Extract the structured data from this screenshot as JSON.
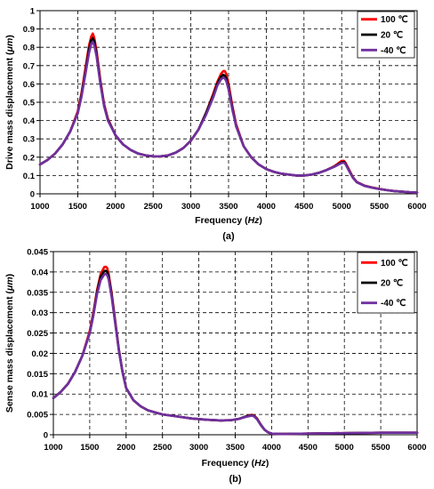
{
  "chart_data": [
    {
      "type": "line",
      "panel_label": "(a)",
      "xlabel_prefix": "Frequency (",
      "xlabel_unit": "Hz",
      "xlabel_suffix": ")",
      "ylabel_prefix": "Drive mass displacement (",
      "ylabel_unit": "μm",
      "ylabel_suffix": ")",
      "xlim": [
        1000,
        6000
      ],
      "ylim": [
        0,
        1
      ],
      "xticks": [
        1000,
        1500,
        2000,
        2500,
        3000,
        3500,
        4000,
        4500,
        5000,
        5500,
        6000
      ],
      "xtick_labels": [
        "1000",
        "1500",
        "2000",
        "2500",
        "3000",
        "3500",
        "4000",
        "4500",
        "5000",
        "5500",
        "6000"
      ],
      "yticks": [
        0,
        0.1,
        0.2,
        0.3,
        0.4,
        0.5,
        0.6,
        0.7,
        0.8,
        0.9,
        1
      ],
      "ytick_labels": [
        "0",
        "0.1",
        "0.2",
        "0.3",
        "0.4",
        "0.5",
        "0.6",
        "0.7",
        "0.8",
        "0.9",
        "1"
      ],
      "grid": "dashed",
      "legend_position": "top-right",
      "series": [
        {
          "name": "100 ℃",
          "color": "#ff0000",
          "x": [
            1000,
            1100,
            1200,
            1300,
            1400,
            1500,
            1550,
            1600,
            1650,
            1680,
            1700,
            1720,
            1750,
            1800,
            1850,
            1900,
            2000,
            2100,
            2200,
            2300,
            2400,
            2500,
            2600,
            2700,
            2800,
            2900,
            3000,
            3100,
            3200,
            3300,
            3350,
            3400,
            3430,
            3450,
            3470,
            3500,
            3550,
            3600,
            3700,
            3800,
            3900,
            4000,
            4100,
            4200,
            4300,
            4400,
            4500,
            4600,
            4700,
            4800,
            4900,
            4950,
            5000,
            5030,
            5050,
            5100,
            5150,
            5200,
            5300,
            5400,
            5500,
            5600,
            5700,
            5800,
            5900,
            6000
          ],
          "y": [
            0.16,
            0.185,
            0.22,
            0.27,
            0.34,
            0.45,
            0.55,
            0.68,
            0.81,
            0.86,
            0.875,
            0.85,
            0.78,
            0.62,
            0.49,
            0.41,
            0.32,
            0.27,
            0.24,
            0.22,
            0.21,
            0.205,
            0.205,
            0.21,
            0.225,
            0.25,
            0.29,
            0.35,
            0.44,
            0.55,
            0.61,
            0.655,
            0.67,
            0.67,
            0.655,
            0.6,
            0.48,
            0.38,
            0.26,
            0.2,
            0.16,
            0.135,
            0.12,
            0.11,
            0.105,
            0.1,
            0.1,
            0.105,
            0.115,
            0.13,
            0.15,
            0.165,
            0.18,
            0.18,
            0.17,
            0.13,
            0.09,
            0.065,
            0.045,
            0.035,
            0.027,
            0.02,
            0.015,
            0.012,
            0.009,
            0.007
          ]
        },
        {
          "name": "20 ℃",
          "color": "#000000",
          "x": [
            1000,
            1100,
            1200,
            1300,
            1400,
            1500,
            1550,
            1600,
            1650,
            1680,
            1700,
            1720,
            1750,
            1800,
            1850,
            1900,
            2000,
            2100,
            2200,
            2300,
            2400,
            2500,
            2600,
            2700,
            2800,
            2900,
            3000,
            3100,
            3200,
            3300,
            3350,
            3400,
            3430,
            3450,
            3470,
            3500,
            3550,
            3600,
            3700,
            3800,
            3900,
            4000,
            4100,
            4200,
            4300,
            4400,
            4500,
            4600,
            4700,
            4800,
            4900,
            4950,
            5000,
            5030,
            5050,
            5100,
            5150,
            5200,
            5300,
            5400,
            5500,
            5600,
            5700,
            5800,
            5900,
            6000
          ],
          "y": [
            0.16,
            0.185,
            0.22,
            0.27,
            0.34,
            0.44,
            0.54,
            0.66,
            0.79,
            0.84,
            0.85,
            0.83,
            0.76,
            0.61,
            0.48,
            0.405,
            0.32,
            0.27,
            0.24,
            0.22,
            0.21,
            0.205,
            0.205,
            0.21,
            0.225,
            0.25,
            0.29,
            0.35,
            0.44,
            0.54,
            0.6,
            0.64,
            0.65,
            0.645,
            0.63,
            0.58,
            0.47,
            0.37,
            0.26,
            0.2,
            0.16,
            0.135,
            0.12,
            0.11,
            0.105,
            0.1,
            0.1,
            0.105,
            0.115,
            0.13,
            0.148,
            0.16,
            0.172,
            0.174,
            0.165,
            0.125,
            0.088,
            0.064,
            0.044,
            0.034,
            0.026,
            0.02,
            0.015,
            0.012,
            0.009,
            0.007
          ]
        },
        {
          "name": "-40 ℃",
          "color": "#7030a0",
          "x": [
            1000,
            1100,
            1200,
            1300,
            1400,
            1500,
            1550,
            1600,
            1650,
            1680,
            1700,
            1720,
            1750,
            1800,
            1850,
            1900,
            2000,
            2100,
            2200,
            2300,
            2400,
            2500,
            2600,
            2700,
            2800,
            2900,
            3000,
            3100,
            3200,
            3300,
            3350,
            3400,
            3430,
            3450,
            3470,
            3500,
            3550,
            3600,
            3700,
            3800,
            3900,
            4000,
            4100,
            4200,
            4300,
            4400,
            4500,
            4600,
            4700,
            4800,
            4900,
            4950,
            5000,
            5030,
            5050,
            5100,
            5150,
            5200,
            5300,
            5400,
            5500,
            5600,
            5700,
            5800,
            5900,
            6000
          ],
          "y": [
            0.16,
            0.185,
            0.22,
            0.27,
            0.34,
            0.44,
            0.53,
            0.65,
            0.77,
            0.82,
            0.83,
            0.81,
            0.75,
            0.6,
            0.48,
            0.4,
            0.32,
            0.27,
            0.24,
            0.22,
            0.21,
            0.205,
            0.205,
            0.21,
            0.225,
            0.25,
            0.29,
            0.35,
            0.43,
            0.53,
            0.59,
            0.625,
            0.635,
            0.63,
            0.615,
            0.57,
            0.46,
            0.37,
            0.26,
            0.2,
            0.16,
            0.135,
            0.12,
            0.11,
            0.105,
            0.1,
            0.1,
            0.105,
            0.115,
            0.13,
            0.147,
            0.158,
            0.168,
            0.17,
            0.162,
            0.123,
            0.087,
            0.063,
            0.044,
            0.034,
            0.026,
            0.02,
            0.015,
            0.012,
            0.009,
            0.007
          ]
        }
      ]
    },
    {
      "type": "line",
      "panel_label": "(b)",
      "xlabel_prefix": "Frequency (",
      "xlabel_unit": "Hz",
      "xlabel_suffix": ")",
      "ylabel_prefix": "Sense mass displacement (",
      "ylabel_unit": "μm",
      "ylabel_suffix": ")",
      "xlim": [
        1000,
        6000
      ],
      "ylim": [
        0,
        0.045
      ],
      "xticks": [
        1000,
        1500,
        2000,
        2500,
        3000,
        3500,
        4000,
        4500,
        5000,
        5500,
        6000
      ],
      "xtick_labels": [
        "1000",
        "1500",
        "2000",
        "2500",
        "3000",
        "3500",
        "4000",
        "4500",
        "5000",
        "5500",
        "6000"
      ],
      "yticks": [
        0,
        0.005,
        0.01,
        0.015,
        0.02,
        0.025,
        0.03,
        0.035,
        0.04,
        0.045
      ],
      "ytick_labels": [
        "0",
        "0.005",
        "0.01",
        "0.015",
        "0.02",
        "0.025",
        "0.03",
        "0.035",
        "0.04",
        "0.045"
      ],
      "grid": "dashed",
      "legend_position": "top-right",
      "series": [
        {
          "name": "100 ℃",
          "color": "#ff0000",
          "x": [
            1000,
            1100,
            1200,
            1300,
            1400,
            1500,
            1550,
            1600,
            1650,
            1700,
            1720,
            1740,
            1760,
            1800,
            1850,
            1900,
            1950,
            2000,
            2100,
            2200,
            2300,
            2400,
            2500,
            2700,
            2900,
            3100,
            3300,
            3450,
            3550,
            3650,
            3700,
            3730,
            3760,
            3800,
            3850,
            3900,
            3950,
            4000,
            4100,
            4200,
            4500,
            5000,
            5500,
            6000
          ],
          "y": [
            0.009,
            0.0105,
            0.0125,
            0.0155,
            0.0195,
            0.0255,
            0.03,
            0.0355,
            0.0395,
            0.0412,
            0.0413,
            0.041,
            0.0395,
            0.035,
            0.028,
            0.021,
            0.0155,
            0.0115,
            0.0085,
            0.007,
            0.006,
            0.0055,
            0.005,
            0.0045,
            0.004,
            0.0037,
            0.0035,
            0.0036,
            0.0039,
            0.0045,
            0.0048,
            0.0049,
            0.0047,
            0.004,
            0.0025,
            0.0013,
            0.0006,
            0.0003,
            0.0002,
            0.0002,
            0.0003,
            0.0004,
            0.0005,
            0.0005
          ]
        },
        {
          "name": "20 ℃",
          "color": "#000000",
          "x": [
            1000,
            1100,
            1200,
            1300,
            1400,
            1500,
            1550,
            1600,
            1650,
            1700,
            1720,
            1740,
            1760,
            1800,
            1850,
            1900,
            1950,
            2000,
            2100,
            2200,
            2300,
            2400,
            2500,
            2700,
            2900,
            3100,
            3300,
            3450,
            3550,
            3650,
            3700,
            3730,
            3760,
            3800,
            3850,
            3900,
            3950,
            4000,
            4100,
            4200,
            4500,
            5000,
            5500,
            6000
          ],
          "y": [
            0.009,
            0.0105,
            0.0125,
            0.0155,
            0.0195,
            0.025,
            0.0295,
            0.035,
            0.0388,
            0.0402,
            0.0403,
            0.04,
            0.0388,
            0.0345,
            0.0277,
            0.0209,
            0.0155,
            0.0115,
            0.0085,
            0.007,
            0.006,
            0.0055,
            0.005,
            0.0045,
            0.004,
            0.0037,
            0.0035,
            0.0036,
            0.0039,
            0.0045,
            0.0047,
            0.0048,
            0.0046,
            0.0039,
            0.0025,
            0.0013,
            0.0006,
            0.0003,
            0.0002,
            0.0002,
            0.0003,
            0.0004,
            0.0005,
            0.0005
          ]
        },
        {
          "name": "-40 ℃",
          "color": "#7030a0",
          "x": [
            1000,
            1100,
            1200,
            1300,
            1400,
            1500,
            1550,
            1600,
            1650,
            1700,
            1720,
            1740,
            1760,
            1800,
            1850,
            1900,
            1950,
            2000,
            2100,
            2200,
            2300,
            2400,
            2500,
            2700,
            2900,
            3100,
            3300,
            3450,
            3550,
            3650,
            3700,
            3730,
            3760,
            3800,
            3850,
            3900,
            3950,
            4000,
            4100,
            4200,
            4500,
            5000,
            5500,
            6000
          ],
          "y": [
            0.009,
            0.0105,
            0.0125,
            0.0155,
            0.0195,
            0.025,
            0.0293,
            0.0345,
            0.038,
            0.0394,
            0.0395,
            0.0392,
            0.0382,
            0.034,
            0.0274,
            0.0207,
            0.0154,
            0.0115,
            0.0085,
            0.007,
            0.006,
            0.0055,
            0.005,
            0.0045,
            0.004,
            0.0037,
            0.0035,
            0.0036,
            0.0039,
            0.0044,
            0.0046,
            0.0047,
            0.0045,
            0.0038,
            0.0024,
            0.0013,
            0.0006,
            0.0003,
            0.0002,
            0.0002,
            0.0003,
            0.0004,
            0.0005,
            0.0005
          ]
        }
      ]
    }
  ]
}
